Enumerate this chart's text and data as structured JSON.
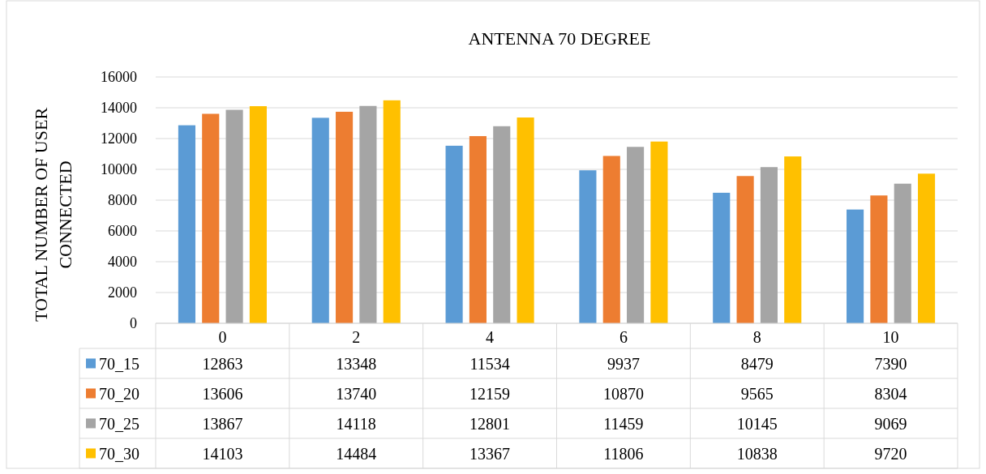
{
  "chart_data": {
    "type": "bar",
    "title": "ANTENNA 70 DEGREE",
    "ylabel": "TOTAL NUMBER OF USER\nCONNECTED",
    "categories": [
      "0",
      "2",
      "4",
      "6",
      "8",
      "10"
    ],
    "series": [
      {
        "name": "70_15",
        "color": "#5b9bd5",
        "values": [
          12863,
          13348,
          11534,
          9937,
          8479,
          7390
        ]
      },
      {
        "name": "70_20",
        "color": "#ed7d31",
        "values": [
          13606,
          13740,
          12159,
          10870,
          9565,
          8304
        ]
      },
      {
        "name": "70_25",
        "color": "#a5a5a5",
        "values": [
          13867,
          14118,
          12801,
          11459,
          10145,
          9069
        ]
      },
      {
        "name": "70_30",
        "color": "#ffc000",
        "values": [
          14103,
          14484,
          13367,
          11806,
          10838,
          9720
        ]
      }
    ],
    "ylim": [
      0,
      16000
    ],
    "yticks": [
      0,
      2000,
      4000,
      6000,
      8000,
      10000,
      12000,
      14000,
      16000
    ],
    "grid": "y",
    "legend": "bottom",
    "data_labels": true
  }
}
